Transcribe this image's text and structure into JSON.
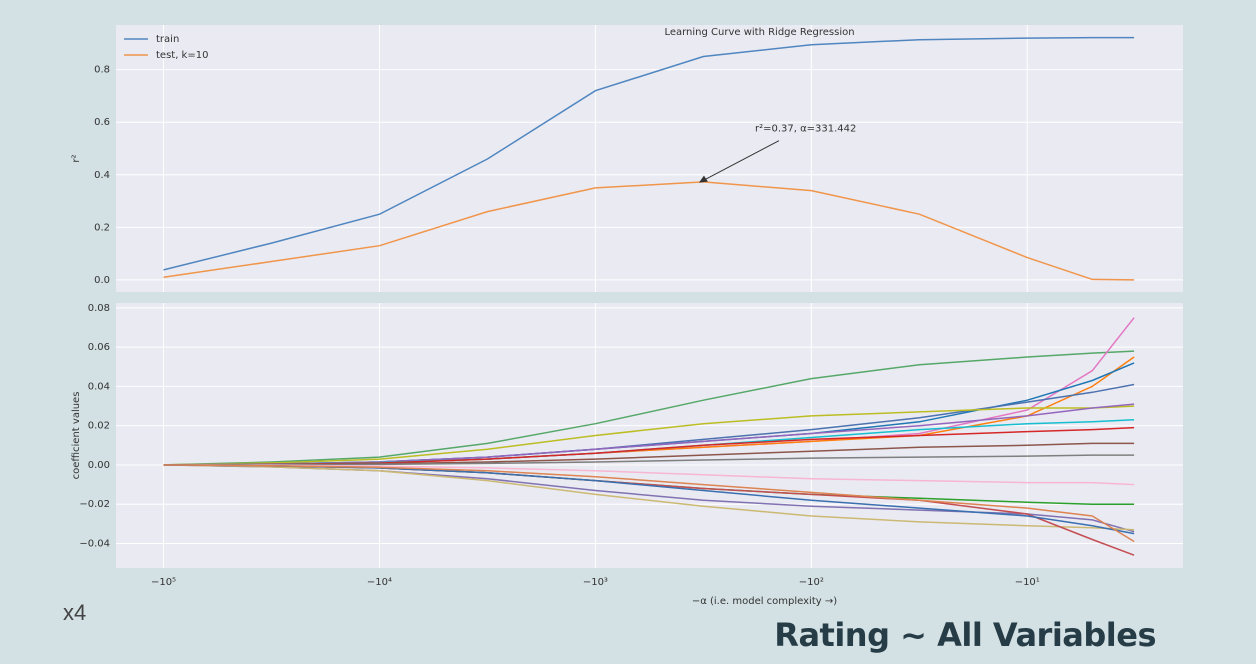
{
  "chart_data": [
    {
      "type": "line",
      "title": "Learning Curve with Ridge Regression",
      "ylabel": "r²",
      "xscale": "symlog",
      "grid": true,
      "legend": "upper left",
      "x": [
        -100000,
        -31623,
        -10000,
        -3162,
        -1000,
        -316,
        -100,
        -31.6,
        -10,
        -5,
        -3.2
      ],
      "xlim": [
        -166000,
        -1.9
      ],
      "xticks": [
        -100000,
        -10000,
        -1000,
        -100,
        -10
      ],
      "ylim": [
        -0.046,
        0.97
      ],
      "yticks": [
        {
          "value": 0,
          "label": "0.0"
        },
        0.2,
        0.4,
        0.6,
        0.8
      ],
      "series": [
        {
          "name": "train",
          "color": "#4f86c0",
          "values": [
            0.038,
            0.14,
            0.25,
            0.46,
            0.72,
            0.85,
            0.895,
            0.914,
            0.92,
            0.922,
            0.922
          ]
        },
        {
          "name": "test, k=10",
          "color": "#f0954a",
          "values": [
            0.01,
            0.07,
            0.13,
            0.26,
            0.35,
            0.373,
            0.34,
            0.25,
            0.085,
            0.002,
            0.0
          ]
        }
      ],
      "annotations": [
        {
          "text": "r²=0.37, α=331.442",
          "x": -331.442,
          "y": 0.37
        }
      ]
    },
    {
      "type": "line",
      "ylabel": "coefficient values",
      "xlabel": "−α (i.e. model complexity →)",
      "xscale": "symlog",
      "grid": true,
      "x": [
        -100000,
        -31623,
        -10000,
        -3162,
        -1000,
        -316,
        -100,
        -31.6,
        -10,
        -5,
        -3.2
      ],
      "xlim": [
        -166000,
        -1.9
      ],
      "xticks": [
        {
          "value": -100000,
          "label": "−10⁵"
        },
        {
          "value": -10000,
          "label": "−10⁴"
        },
        {
          "value": -1000,
          "label": "−10³"
        },
        {
          "value": -100,
          "label": "−10²"
        },
        {
          "value": -10,
          "label": "−10¹"
        }
      ],
      "ylim": [
        -0.0525,
        0.0825
      ],
      "yticks": [
        {
          "value": -0.04,
          "label": "−0.04"
        },
        {
          "value": -0.02,
          "label": "−0.02"
        },
        {
          "value": 0,
          "label": "0.00"
        },
        0.02,
        0.04,
        0.06,
        0.08
      ],
      "series": [
        {
          "color": "#55a868",
          "values": [
            0,
            0.0015,
            0.004,
            0.011,
            0.021,
            0.033,
            0.044,
            0.051,
            0.055,
            0.057,
            0.058
          ]
        },
        {
          "color": "#e377c2",
          "values": [
            0,
            0.0005,
            0.001,
            0.003,
            0.006,
            0.009,
            0.012,
            0.016,
            0.028,
            0.048,
            0.075
          ]
        },
        {
          "color": "#ff7f0e",
          "values": [
            0,
            0.0005,
            0.001,
            0.003,
            0.006,
            0.009,
            0.012,
            0.015,
            0.025,
            0.04,
            0.055
          ]
        },
        {
          "color": "#1f77b4",
          "values": [
            0,
            0.0005,
            0.0015,
            0.004,
            0.008,
            0.012,
            0.016,
            0.022,
            0.033,
            0.043,
            0.052
          ]
        },
        {
          "color": "#4c72b0",
          "values": [
            0,
            0.0005,
            0.0015,
            0.004,
            0.008,
            0.013,
            0.018,
            0.024,
            0.032,
            0.037,
            0.041
          ]
        },
        {
          "color": "#bcbd22",
          "values": [
            0,
            0.001,
            0.003,
            0.008,
            0.015,
            0.021,
            0.025,
            0.027,
            0.029,
            0.029,
            0.03
          ]
        },
        {
          "color": "#9467bd",
          "values": [
            0,
            0.0005,
            0.0015,
            0.004,
            0.008,
            0.012,
            0.016,
            0.02,
            0.025,
            0.029,
            0.031
          ]
        },
        {
          "color": "#17becf",
          "values": [
            0,
            0.0004,
            0.0012,
            0.003,
            0.006,
            0.01,
            0.014,
            0.018,
            0.021,
            0.022,
            0.023
          ]
        },
        {
          "color": "#d62728",
          "values": [
            0,
            0.0003,
            0.001,
            0.003,
            0.006,
            0.01,
            0.013,
            0.015,
            0.017,
            0.018,
            0.019
          ]
        },
        {
          "color": "#8c564b",
          "values": [
            0,
            0.0002,
            0.0006,
            0.0015,
            0.003,
            0.005,
            0.007,
            0.009,
            0.01,
            0.011,
            0.011
          ]
        },
        {
          "color": "#7f7f7f",
          "values": [
            0,
            0.0001,
            0.0003,
            0.0008,
            0.0015,
            0.0025,
            0.0035,
            0.004,
            0.0045,
            0.005,
            0.005
          ]
        },
        {
          "color": "#f7b6d2",
          "values": [
            0,
            -0.0002,
            -0.0006,
            -0.0015,
            -0.003,
            -0.005,
            -0.007,
            -0.008,
            -0.009,
            -0.009,
            -0.01
          ]
        },
        {
          "color": "#2ca02c",
          "values": [
            0,
            -0.0005,
            -0.0015,
            -0.004,
            -0.008,
            -0.012,
            -0.015,
            -0.017,
            -0.019,
            -0.02,
            -0.02
          ]
        },
        {
          "color": "#8172b2",
          "values": [
            0,
            -0.001,
            -0.003,
            -0.007,
            -0.013,
            -0.018,
            -0.021,
            -0.023,
            -0.025,
            -0.028,
            -0.034
          ]
        },
        {
          "color": "#ccb974",
          "values": [
            0,
            -0.001,
            -0.003,
            -0.008,
            -0.015,
            -0.021,
            -0.026,
            -0.029,
            -0.031,
            -0.032,
            -0.033
          ]
        },
        {
          "color": "#c44e52",
          "values": [
            0,
            -0.0005,
            -0.0015,
            -0.004,
            -0.008,
            -0.012,
            -0.015,
            -0.018,
            -0.025,
            -0.038,
            -0.046
          ]
        },
        {
          "color": "#3a6fb0",
          "values": [
            0,
            -0.0005,
            -0.0015,
            -0.004,
            -0.008,
            -0.013,
            -0.018,
            -0.022,
            -0.026,
            -0.031,
            -0.035
          ]
        },
        {
          "color": "#dd8452",
          "values": [
            0,
            -0.0004,
            -0.0012,
            -0.003,
            -0.006,
            -0.01,
            -0.014,
            -0.018,
            -0.022,
            -0.026,
            -0.039
          ]
        }
      ]
    }
  ],
  "slide": {
    "note": "x4",
    "heading": "Rating ~ All Variables"
  }
}
